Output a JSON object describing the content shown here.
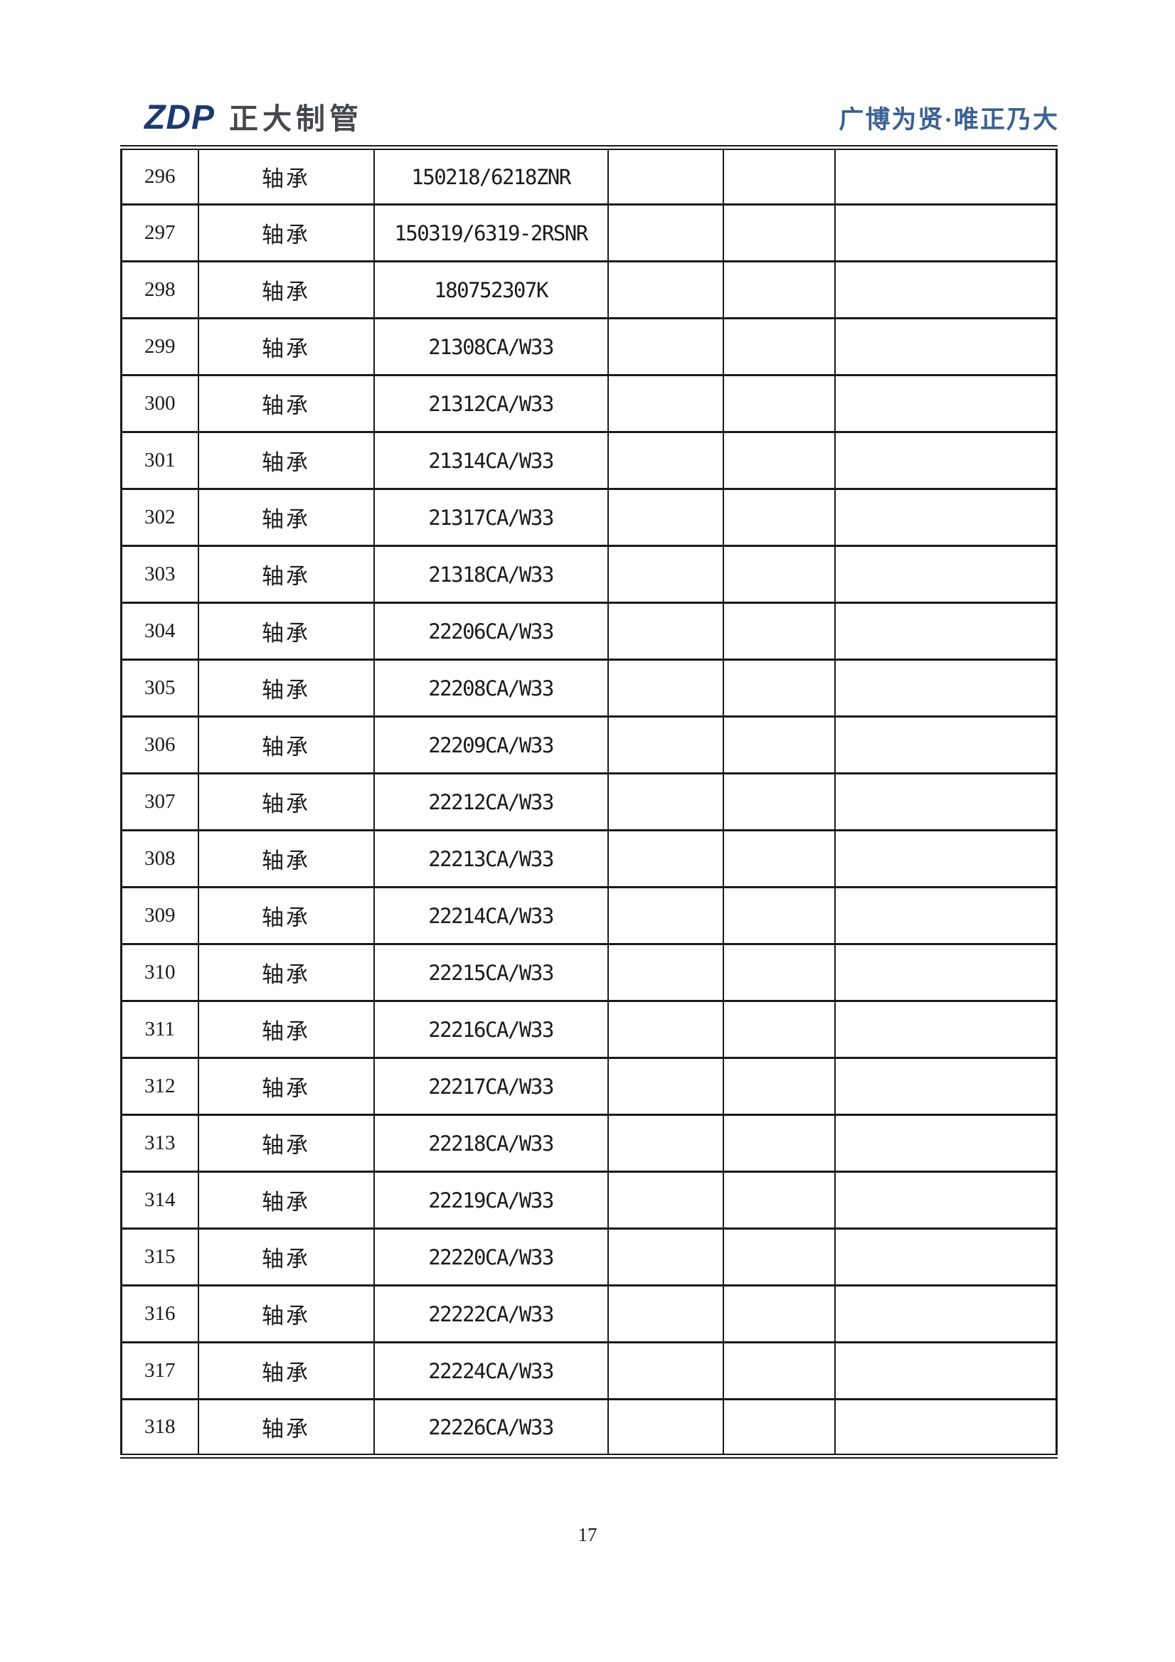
{
  "page": {
    "number": "17"
  },
  "header": {
    "logo_text": "ZDP",
    "company_name": "正大制管",
    "slogan": "广博为贤·唯正乃大",
    "colors": {
      "logo": "#1c3a6e",
      "company": "#45484c",
      "slogan": "#3a6191",
      "table_border": "#1a1a1a",
      "text": "#1b1b1b"
    }
  },
  "table": {
    "empty_columns": 3,
    "rows": [
      {
        "no": "296",
        "name": "轴承",
        "model": "150218/6218ZNR"
      },
      {
        "no": "297",
        "name": "轴承",
        "model": "150319/6319-2RSNR"
      },
      {
        "no": "298",
        "name": "轴承",
        "model": "180752307K"
      },
      {
        "no": "299",
        "name": "轴承",
        "model": "21308CA/W33"
      },
      {
        "no": "300",
        "name": "轴承",
        "model": "21312CA/W33"
      },
      {
        "no": "301",
        "name": "轴承",
        "model": "21314CA/W33"
      },
      {
        "no": "302",
        "name": "轴承",
        "model": "21317CA/W33"
      },
      {
        "no": "303",
        "name": "轴承",
        "model": "21318CA/W33"
      },
      {
        "no": "304",
        "name": "轴承",
        "model": "22206CA/W33"
      },
      {
        "no": "305",
        "name": "轴承",
        "model": "22208CA/W33"
      },
      {
        "no": "306",
        "name": "轴承",
        "model": "22209CA/W33"
      },
      {
        "no": "307",
        "name": "轴承",
        "model": "22212CA/W33"
      },
      {
        "no": "308",
        "name": "轴承",
        "model": "22213CA/W33"
      },
      {
        "no": "309",
        "name": "轴承",
        "model": "22214CA/W33"
      },
      {
        "no": "310",
        "name": "轴承",
        "model": "22215CA/W33"
      },
      {
        "no": "311",
        "name": "轴承",
        "model": "22216CA/W33"
      },
      {
        "no": "312",
        "name": "轴承",
        "model": "22217CA/W33"
      },
      {
        "no": "313",
        "name": "轴承",
        "model": "22218CA/W33"
      },
      {
        "no": "314",
        "name": "轴承",
        "model": "22219CA/W33"
      },
      {
        "no": "315",
        "name": "轴承",
        "model": "22220CA/W33"
      },
      {
        "no": "316",
        "name": "轴承",
        "model": "22222CA/W33"
      },
      {
        "no": "317",
        "name": "轴承",
        "model": "22224CA/W33"
      },
      {
        "no": "318",
        "name": "轴承",
        "model": "22226CA/W33"
      }
    ]
  }
}
